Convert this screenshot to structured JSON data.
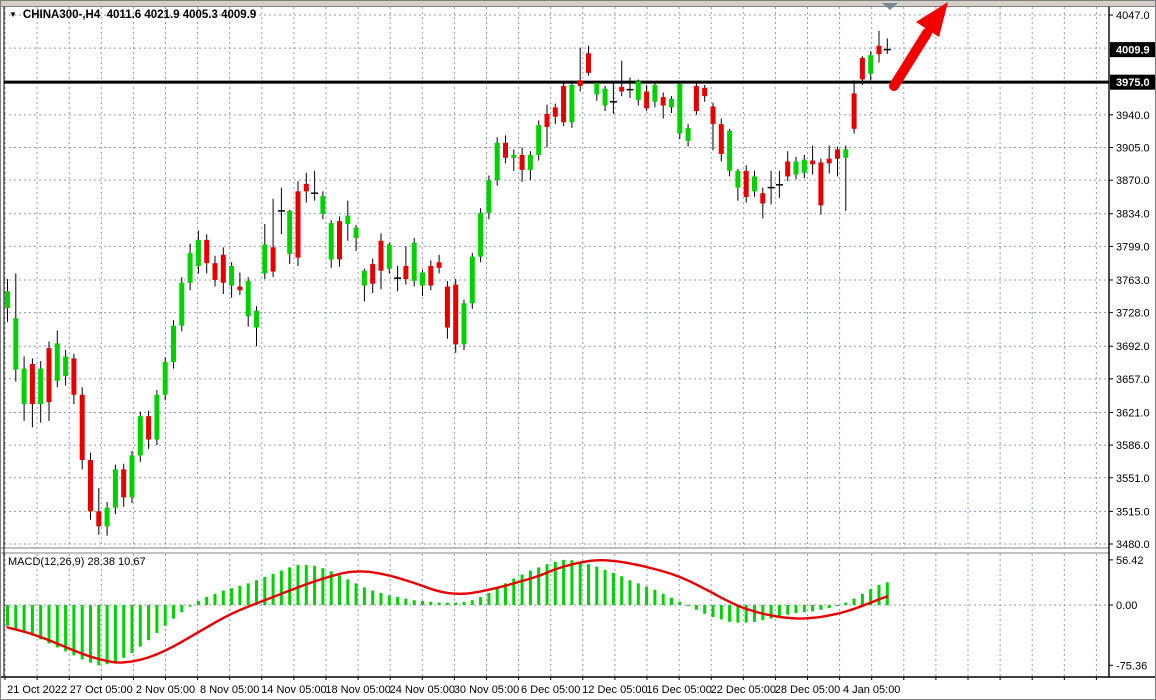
{
  "window": {
    "symbol_title": "CHINA300-,H4  4011.6 4021.9 4005.3 4009.9",
    "dropdown_icon": "black-down-triangle"
  },
  "indicator_label": "MACD(12,26,9) 28.38 10.67",
  "colors": {
    "background": "#ffffff",
    "grid": "#8c9bb0",
    "bull_candle": "#00d200",
    "bear_candle": "#e60000",
    "wick": "#000000",
    "macd_histogram": "#00d200",
    "macd_signal": "#e60000",
    "support_line": "#000000",
    "price_tag_bg": "#000000",
    "price_tag_text": "#ffffff",
    "trend_arrow": "#f20000",
    "bar_marker": "#778899",
    "frame": "#808080"
  },
  "price_axis": {
    "labeled_ticks": [
      {
        "text": "4047.0",
        "value": 4047.0
      },
      {
        "text": "3940.0",
        "value": 3940.0
      },
      {
        "text": "3905.0",
        "value": 3905.0
      },
      {
        "text": "3870.0",
        "value": 3870.0
      },
      {
        "text": "3834.0",
        "value": 3834.0
      },
      {
        "text": "3799.0",
        "value": 3799.0
      },
      {
        "text": "3763.0",
        "value": 3763.0
      },
      {
        "text": "3728.0",
        "value": 3728.0
      },
      {
        "text": "3692.0",
        "value": 3692.0
      },
      {
        "text": "3657.0",
        "value": 3657.0
      },
      {
        "text": "3621.0",
        "value": 3621.0
      },
      {
        "text": "3586.0",
        "value": 3586.0
      },
      {
        "text": "3551.0",
        "value": 3551.0
      },
      {
        "text": "3515.0",
        "value": 3515.0
      },
      {
        "text": "3480.0",
        "value": 3480.0
      }
    ],
    "grid_values": [
      4047.0,
      4011.5,
      3940.0,
      3905.0,
      3870.0,
      3834.0,
      3799.0,
      3763.0,
      3728.0,
      3692.0,
      3657.0,
      3621.0,
      3586.0,
      3551.0,
      3515.0,
      3480.0
    ],
    "price_tags": [
      {
        "text": "4009.9",
        "value": 4009.9,
        "kind": "current-price"
      },
      {
        "text": "3975.0",
        "value": 3975.0,
        "kind": "line-price"
      }
    ]
  },
  "macd_axis": {
    "labels": [
      {
        "text": "56.42",
        "value": 56.42
      },
      {
        "text": "0.00",
        "value": 0.0
      },
      {
        "text": "-75.36",
        "value": -75.36
      }
    ]
  },
  "time_axis": {
    "labels": [
      {
        "text": "21 Oct 2022",
        "grid_index": 1
      },
      {
        "text": "27 Oct 05:00",
        "grid_index": 3
      },
      {
        "text": "2 Nov 05:00",
        "grid_index": 5
      },
      {
        "text": "8 Nov 05:00",
        "grid_index": 7
      },
      {
        "text": "14 Nov 05:00",
        "grid_index": 9
      },
      {
        "text": "18 Nov 05:00",
        "grid_index": 11
      },
      {
        "text": "24 Nov 05:00",
        "grid_index": 13
      },
      {
        "text": "30 Nov 05:00",
        "grid_index": 15
      },
      {
        "text": "6 Dec 05:00",
        "grid_index": 17
      },
      {
        "text": "12 Dec 05:00",
        "grid_index": 19
      },
      {
        "text": "16 Dec 05:00",
        "grid_index": 21
      },
      {
        "text": "22 Dec 05:00",
        "grid_index": 23
      },
      {
        "text": "28 Dec 05:00",
        "grid_index": 25
      },
      {
        "text": "4 Jan 05:00",
        "grid_index": 27
      }
    ]
  },
  "chart_data": {
    "type": "candlestick-with-macd",
    "symbol": "CHINA300-",
    "timeframe": "H4",
    "current_bar": {
      "open": 4011.6,
      "high": 4021.9,
      "low": 4005.3,
      "close": 4009.9
    },
    "support_line_value": 3975.0,
    "price_range": [
      3480.0,
      4047.0
    ],
    "macd_range": [
      -75.36,
      56.42
    ],
    "macd_current": {
      "main": 28.38,
      "signal": 10.67
    },
    "annotations": [
      {
        "type": "arrow-up-right",
        "color": "#f20000",
        "from_price": 3975.0,
        "note": "breakout arrow above 3975 line"
      },
      {
        "type": "bar-marker-triangle",
        "color": "#778899",
        "position": "top-of-last-bar"
      }
    ],
    "candles": [
      [
        3733,
        3764,
        3718,
        3751
      ],
      [
        3667,
        3770,
        3654,
        3722
      ],
      [
        3630,
        3681,
        3612,
        3668
      ],
      [
        3673,
        3679,
        3605,
        3630
      ],
      [
        3630,
        3676,
        3610,
        3668
      ],
      [
        3690,
        3697,
        3612,
        3632
      ],
      [
        3655,
        3709,
        3648,
        3695
      ],
      [
        3660,
        3688,
        3650,
        3681
      ],
      [
        3679,
        3684,
        3630,
        3640
      ],
      [
        3640,
        3648,
        3560,
        3570
      ],
      [
        3570,
        3578,
        3506,
        3515
      ],
      [
        3515,
        3540,
        3490,
        3499
      ],
      [
        3499,
        3525,
        3489,
        3519
      ],
      [
        3519,
        3565,
        3512,
        3560
      ],
      [
        3560,
        3566,
        3520,
        3530
      ],
      [
        3530,
        3580,
        3524,
        3575
      ],
      [
        3575,
        3622,
        3568,
        3617
      ],
      [
        3617,
        3623,
        3582,
        3592
      ],
      [
        3592,
        3645,
        3586,
        3640
      ],
      [
        3640,
        3680,
        3634,
        3675
      ],
      [
        3675,
        3720,
        3668,
        3714
      ],
      [
        3714,
        3766,
        3708,
        3760
      ],
      [
        3760,
        3802,
        3752,
        3792
      ],
      [
        3778,
        3816,
        3770,
        3806
      ],
      [
        3806,
        3812,
        3770,
        3781
      ],
      [
        3781,
        3789,
        3756,
        3763
      ],
      [
        3790,
        3798,
        3748,
        3760
      ],
      [
        3757,
        3782,
        3744,
        3778
      ],
      [
        3756,
        3771,
        3747,
        3752
      ],
      [
        3724,
        3766,
        3713,
        3762
      ],
      [
        3712,
        3735,
        3692,
        3730
      ],
      [
        3770,
        3823,
        3764,
        3801
      ],
      [
        3798,
        3850,
        3766,
        3772
      ],
      [
        3838,
        3862,
        3812,
        3837
      ],
      [
        3791,
        3838,
        3780,
        3837
      ],
      [
        3858,
        3869,
        3778,
        3787
      ],
      [
        3866,
        3878,
        3846,
        3858
      ],
      [
        3856,
        3880,
        3848,
        3856
      ],
      [
        3834,
        3858,
        3828,
        3853
      ],
      [
        3785,
        3827,
        3776,
        3824
      ],
      [
        3826,
        3831,
        3777,
        3785
      ],
      [
        3823,
        3848,
        3805,
        3832
      ],
      [
        3808,
        3822,
        3794,
        3819
      ],
      [
        3757,
        3775,
        3740,
        3773
      ],
      [
        3780,
        3786,
        3749,
        3759
      ],
      [
        3805,
        3813,
        3753,
        3773
      ],
      [
        3775,
        3803,
        3770,
        3801
      ],
      [
        3764,
        3778,
        3751,
        3765
      ],
      [
        3778,
        3799,
        3758,
        3764
      ],
      [
        3762,
        3808,
        3756,
        3803
      ],
      [
        3757,
        3774,
        3746,
        3771
      ],
      [
        3778,
        3784,
        3752,
        3757
      ],
      [
        3782,
        3790,
        3770,
        3776
      ],
      [
        3756,
        3762,
        3700,
        3712
      ],
      [
        3758,
        3764,
        3685,
        3694
      ],
      [
        3694,
        3742,
        3688,
        3738
      ],
      [
        3738,
        3792,
        3732,
        3788
      ],
      [
        3788,
        3840,
        3782,
        3835
      ],
      [
        3835,
        3875,
        3828,
        3870
      ],
      [
        3870,
        3916,
        3864,
        3910
      ],
      [
        3910,
        3918,
        3888,
        3894
      ],
      [
        3894,
        3903,
        3880,
        3897
      ],
      [
        3897,
        3905,
        3868,
        3881
      ],
      [
        3881,
        3901,
        3870,
        3897
      ],
      [
        3897,
        3934,
        3891,
        3929
      ],
      [
        3941,
        3951,
        3905,
        3927
      ],
      [
        3948,
        3952,
        3930,
        3938
      ],
      [
        3971,
        3974,
        3928,
        3932
      ],
      [
        3932,
        3976,
        3926,
        3972
      ],
      [
        3977,
        4012,
        3965,
        3971
      ],
      [
        4006,
        4014,
        3982,
        3985
      ],
      [
        3962,
        3976,
        3955,
        3974
      ],
      [
        3950,
        3971,
        3944,
        3968
      ],
      [
        3956,
        3975,
        3941,
        3954
      ],
      [
        3970,
        3998,
        3960,
        3965
      ],
      [
        3968,
        3980,
        3958,
        3967
      ],
      [
        3956,
        3978,
        3950,
        3976
      ],
      [
        3965,
        3972,
        3944,
        3947
      ],
      [
        3954,
        3974,
        3948,
        3972
      ],
      [
        3959,
        3964,
        3936,
        3950
      ],
      [
        3948,
        3960,
        3942,
        3957
      ],
      [
        3920,
        3975,
        3914,
        3973
      ],
      [
        3912,
        3930,
        3906,
        3926
      ],
      [
        3971,
        3974,
        3940,
        3944
      ],
      [
        3969,
        3972,
        3954,
        3960
      ],
      [
        3949,
        3953,
        3902,
        3930
      ],
      [
        3930,
        3936,
        3890,
        3898
      ],
      [
        3880,
        3925,
        3874,
        3923
      ],
      [
        3862,
        3882,
        3848,
        3880
      ],
      [
        3880,
        3886,
        3846,
        3852
      ],
      [
        3858,
        3880,
        3852,
        3874
      ],
      [
        3856,
        3862,
        3829,
        3845
      ],
      [
        3863,
        3880,
        3844,
        3862
      ],
      [
        3867,
        3880,
        3851,
        3865
      ],
      [
        3890,
        3901,
        3869,
        3874
      ],
      [
        3876,
        3895,
        3871,
        3890
      ],
      [
        3878,
        3897,
        3872,
        3892
      ],
      [
        3891,
        3907,
        3876,
        3887
      ],
      [
        3889,
        3893,
        3833,
        3843
      ],
      [
        3893,
        3907,
        3877,
        3888
      ],
      [
        3903,
        3906,
        3874,
        3893
      ],
      [
        3894,
        3907,
        3837,
        3903
      ],
      [
        3963,
        3977,
        3920,
        3925
      ],
      [
        4001,
        4003,
        3972,
        3978
      ],
      [
        3984,
        4008,
        3977,
        4004
      ],
      [
        4014,
        4030,
        3996,
        4005
      ],
      [
        4011.6,
        4021.9,
        4005.3,
        4009.9
      ]
    ],
    "macd_histogram": [
      -26,
      -30,
      -34,
      -38,
      -43,
      -48,
      -53,
      -58,
      -63,
      -68,
      -72,
      -75.4,
      -74,
      -71,
      -66,
      -60,
      -52,
      -44,
      -35,
      -26,
      -17,
      -9,
      -2,
      5,
      10,
      14,
      18,
      21,
      24,
      27,
      31,
      35,
      39,
      43,
      47,
      50,
      50,
      49,
      46,
      42,
      37,
      32,
      27,
      22,
      18,
      15,
      12,
      10,
      8,
      6,
      5,
      4,
      3,
      3,
      3,
      4,
      6,
      10,
      15,
      21,
      27,
      33,
      38,
      43,
      47,
      51,
      54,
      56.4,
      56,
      54,
      51,
      48,
      44,
      40,
      36,
      31,
      27,
      23,
      19,
      14,
      9,
      4,
      -1,
      -6,
      -11,
      -15,
      -18,
      -21,
      -22,
      -22,
      -21,
      -19,
      -17,
      -14,
      -12,
      -10,
      -9,
      -8,
      -6,
      -4,
      -1,
      3,
      8,
      14,
      20,
      25,
      28.4
    ],
    "macd_signal_points": [
      [
        0,
        -28
      ],
      [
        2,
        -33
      ],
      [
        4,
        -40
      ],
      [
        6,
        -48
      ],
      [
        8,
        -57
      ],
      [
        10,
        -65
      ],
      [
        12,
        -70
      ],
      [
        13,
        -72
      ],
      [
        14,
        -72
      ],
      [
        16,
        -69
      ],
      [
        18,
        -62
      ],
      [
        20,
        -52
      ],
      [
        22,
        -40
      ],
      [
        24,
        -28
      ],
      [
        26,
        -16
      ],
      [
        28,
        -6
      ],
      [
        30,
        2
      ],
      [
        32,
        10
      ],
      [
        34,
        18
      ],
      [
        36,
        26
      ],
      [
        38,
        33
      ],
      [
        40,
        39
      ],
      [
        41,
        41
      ],
      [
        42,
        42
      ],
      [
        43,
        42
      ],
      [
        44,
        41
      ],
      [
        46,
        37
      ],
      [
        48,
        31
      ],
      [
        50,
        24
      ],
      [
        51,
        20
      ],
      [
        52,
        17
      ],
      [
        53,
        15
      ],
      [
        54,
        14
      ],
      [
        55,
        14
      ],
      [
        56,
        15
      ],
      [
        58,
        19
      ],
      [
        60,
        24
      ],
      [
        62,
        30
      ],
      [
        64,
        36
      ],
      [
        66,
        45
      ],
      [
        68,
        51
      ],
      [
        69,
        53
      ],
      [
        70,
        55
      ],
      [
        71,
        56
      ],
      [
        72,
        56
      ],
      [
        73,
        55
      ],
      [
        74,
        54
      ],
      [
        76,
        50
      ],
      [
        78,
        45
      ],
      [
        80,
        39
      ],
      [
        82,
        31
      ],
      [
        84,
        20
      ],
      [
        85,
        15
      ],
      [
        86,
        9
      ],
      [
        87,
        4
      ],
      [
        88,
        -1
      ],
      [
        89,
        -5
      ],
      [
        90,
        -8
      ],
      [
        91,
        -11
      ],
      [
        92,
        -13
      ],
      [
        93,
        -15
      ],
      [
        94,
        -16
      ],
      [
        95,
        -17
      ],
      [
        96,
        -17
      ],
      [
        97,
        -16
      ],
      [
        98,
        -15
      ],
      [
        99,
        -13
      ],
      [
        100,
        -11
      ],
      [
        101,
        -8
      ],
      [
        102,
        -5
      ],
      [
        103,
        -1
      ],
      [
        104,
        3
      ],
      [
        105,
        7
      ],
      [
        106,
        10.7
      ]
    ]
  }
}
